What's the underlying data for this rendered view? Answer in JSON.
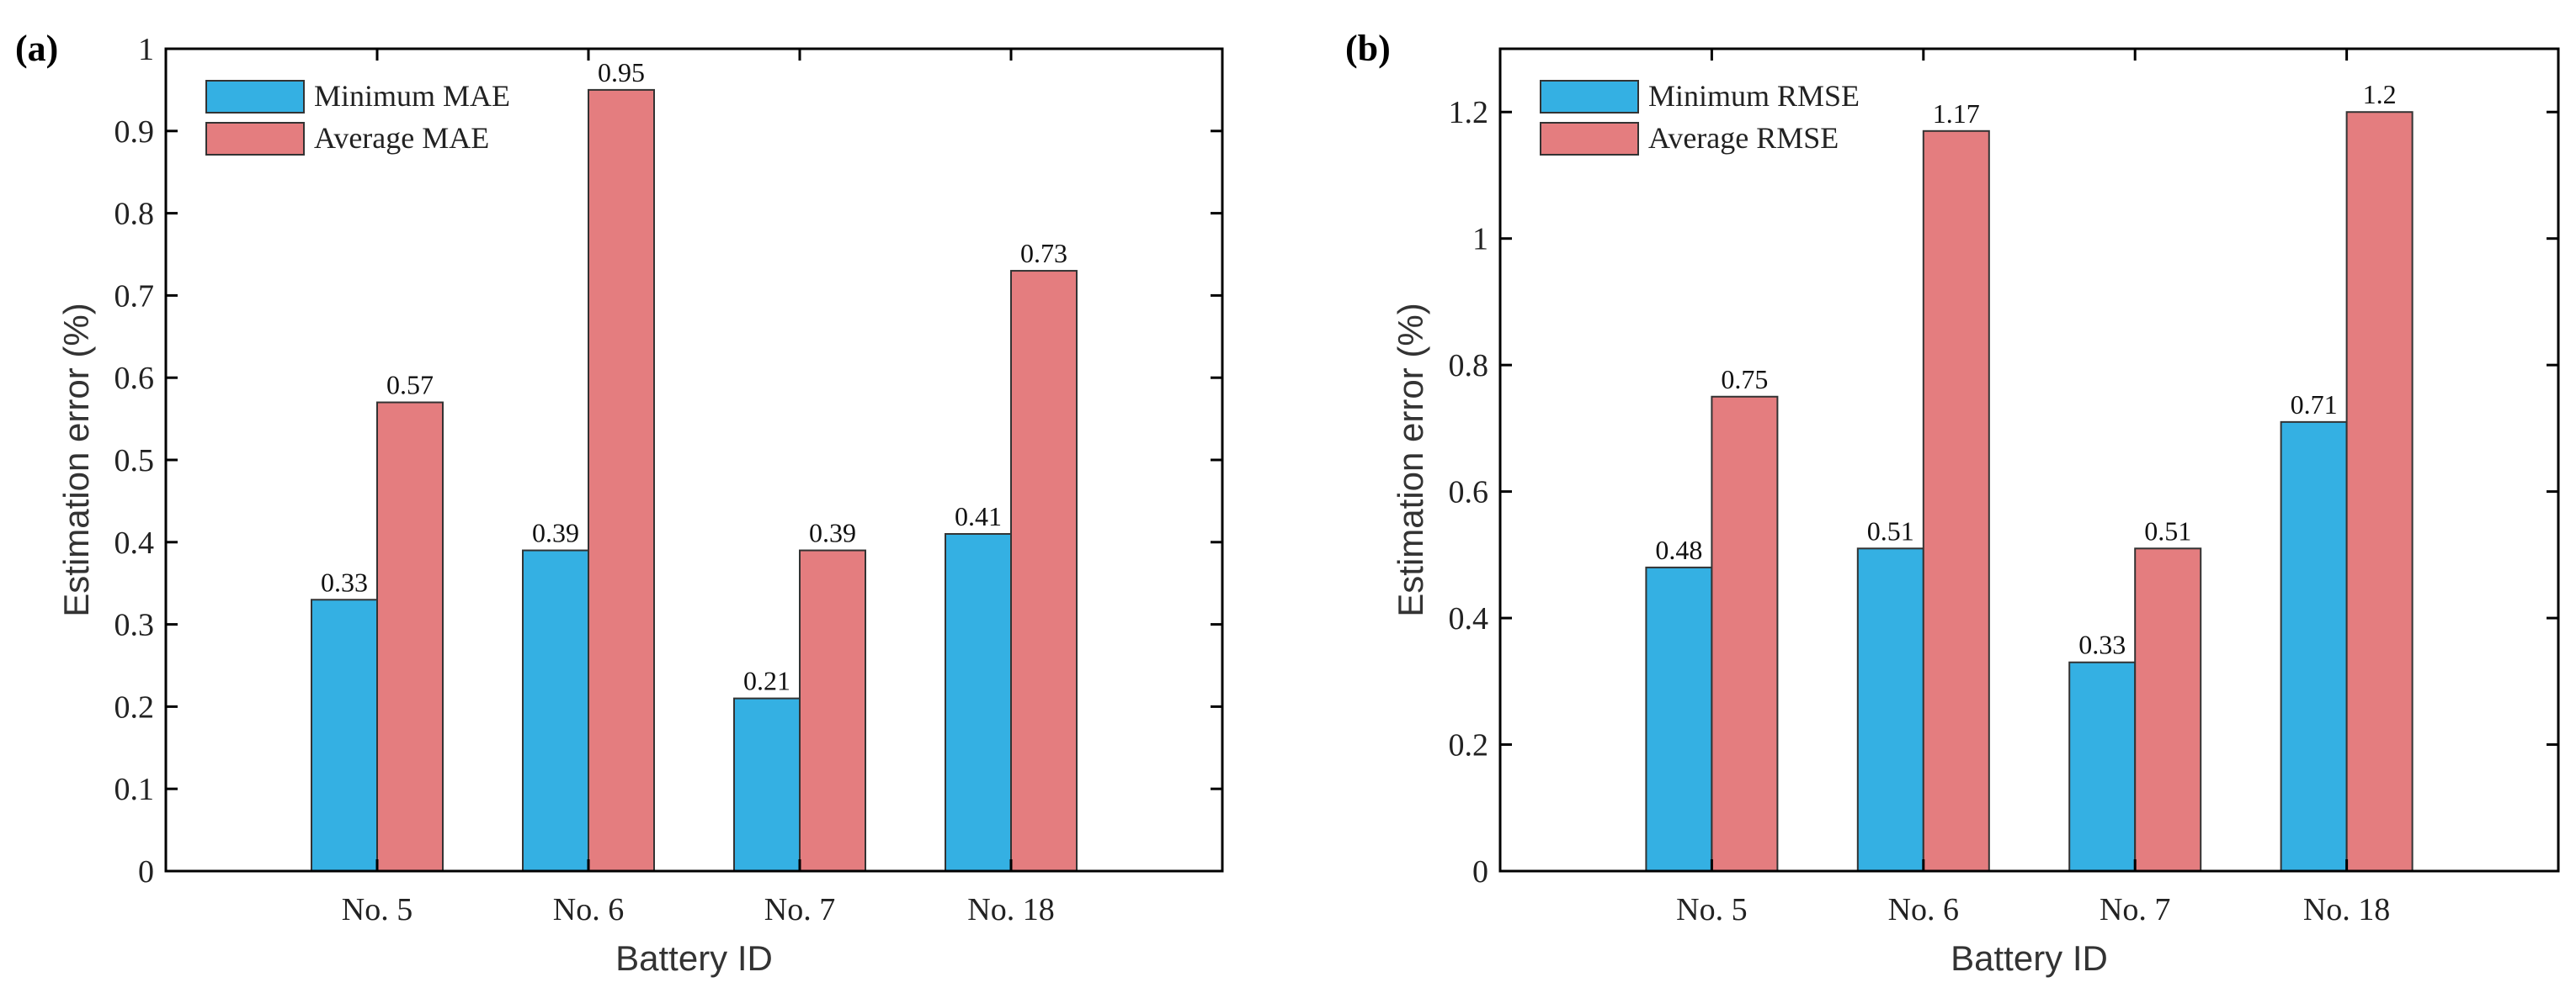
{
  "colors": {
    "minimum": "#34b0e3",
    "average": "#e47d7f",
    "axis": "#000000"
  },
  "chart_data": [
    {
      "type": "bar",
      "panel_label": "(a)",
      "categories": [
        "No. 5",
        "No. 6",
        "No. 7",
        "No. 18"
      ],
      "series": [
        {
          "name": "Minimum MAE",
          "values": [
            0.33,
            0.39,
            0.21,
            0.41
          ]
        },
        {
          "name": "Average MAE",
          "values": [
            0.57,
            0.95,
            0.39,
            0.73
          ]
        }
      ],
      "data_labels": [
        [
          "0.33",
          "0.39",
          "0.21",
          "0.41"
        ],
        [
          "0.57",
          "0.95",
          "0.39",
          "0.73"
        ]
      ],
      "xlabel": "Battery ID",
      "ylabel": "Estimation error (%)",
      "ylim": [
        0,
        1
      ],
      "yticks": [
        0,
        0.1,
        0.2,
        0.3,
        0.4,
        0.5,
        0.6,
        0.7,
        0.8,
        0.9,
        1
      ],
      "ytick_labels": [
        "0",
        "0.1",
        "0.2",
        "0.3",
        "0.4",
        "0.5",
        "0.6",
        "0.7",
        "0.8",
        "0.9",
        "1"
      ],
      "grid": false,
      "legend_position": "top-left"
    },
    {
      "type": "bar",
      "panel_label": "(b)",
      "categories": [
        "No. 5",
        "No. 6",
        "No. 7",
        "No. 18"
      ],
      "series": [
        {
          "name": "Minimum RMSE",
          "values": [
            0.48,
            0.51,
            0.33,
            0.71
          ]
        },
        {
          "name": "Average RMSE",
          "values": [
            0.75,
            1.17,
            0.51,
            1.2
          ]
        }
      ],
      "data_labels": [
        [
          "0.48",
          "0.51",
          "0.33",
          "0.71"
        ],
        [
          "0.75",
          "1.17",
          "0.51",
          "1.2"
        ]
      ],
      "xlabel": "Battery ID",
      "ylabel": "Estimation error (%)",
      "ylim": [
        0,
        1.3
      ],
      "yticks": [
        0,
        0.2,
        0.4,
        0.6,
        0.8,
        1,
        1.2
      ],
      "ytick_labels": [
        "0",
        "0.2",
        "0.4",
        "0.6",
        "0.8",
        "1",
        "1.2"
      ],
      "grid": false,
      "legend_position": "top-left"
    }
  ]
}
